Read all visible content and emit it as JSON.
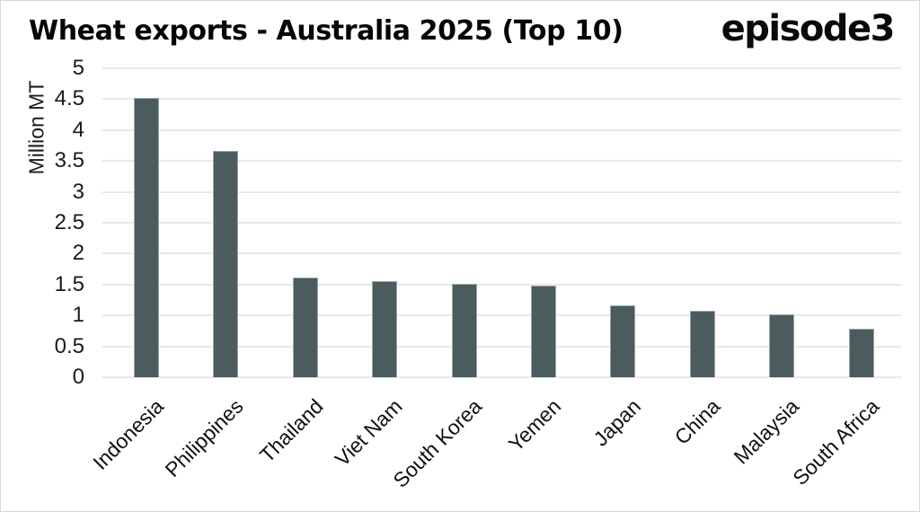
{
  "header": {
    "brand": "episode3"
  },
  "chart_data": {
    "type": "bar",
    "title": "Wheat exports - Australia 2025 (Top 10)",
    "xlabel": "",
    "ylabel": "Million MT",
    "ylim": [
      0,
      5
    ],
    "ytick_labels": [
      "0",
      "0.5",
      "1",
      "1.5",
      "2",
      "2.5",
      "3",
      "3.5",
      "4",
      "4.5",
      "5"
    ],
    "grid": true,
    "legend": false,
    "bar_color": "#4a5c5e",
    "gridline_color": "#e9e9e9",
    "categories": [
      "Indonesia",
      "Philippines",
      "Thailand",
      "Viet Nam",
      "South Korea",
      "Yemen",
      "Japan",
      "China",
      "Malaysia",
      "South Africa"
    ],
    "values": [
      4.52,
      3.66,
      1.62,
      1.56,
      1.51,
      1.48,
      1.17,
      1.07,
      1.02,
      0.78
    ]
  }
}
